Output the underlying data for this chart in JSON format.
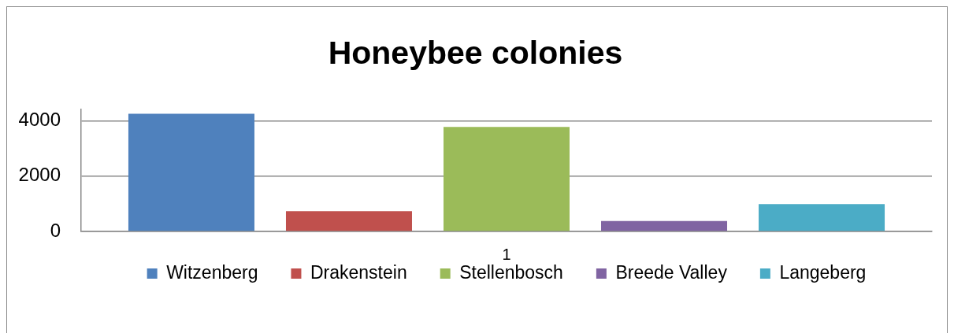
{
  "chart_data": {
    "type": "bar",
    "title": "Honeybee colonies",
    "categories": [
      "1"
    ],
    "series": [
      {
        "name": "Witzenberg",
        "color": "#4f81bd",
        "values": [
          4250
        ]
      },
      {
        "name": "Drakenstein",
        "color": "#c0504d",
        "values": [
          730
        ]
      },
      {
        "name": "Stellenbosch",
        "color": "#9bbb59",
        "values": [
          3770
        ]
      },
      {
        "name": "Breede Valley",
        "color": "#8064a2",
        "values": [
          380
        ]
      },
      {
        "name": "Langeberg",
        "color": "#4bacc6",
        "values": [
          990
        ]
      }
    ],
    "ylim": [
      0,
      4400
    ],
    "yticks": [
      0,
      2000,
      4000
    ],
    "grid": "y",
    "legend": "bottom"
  }
}
